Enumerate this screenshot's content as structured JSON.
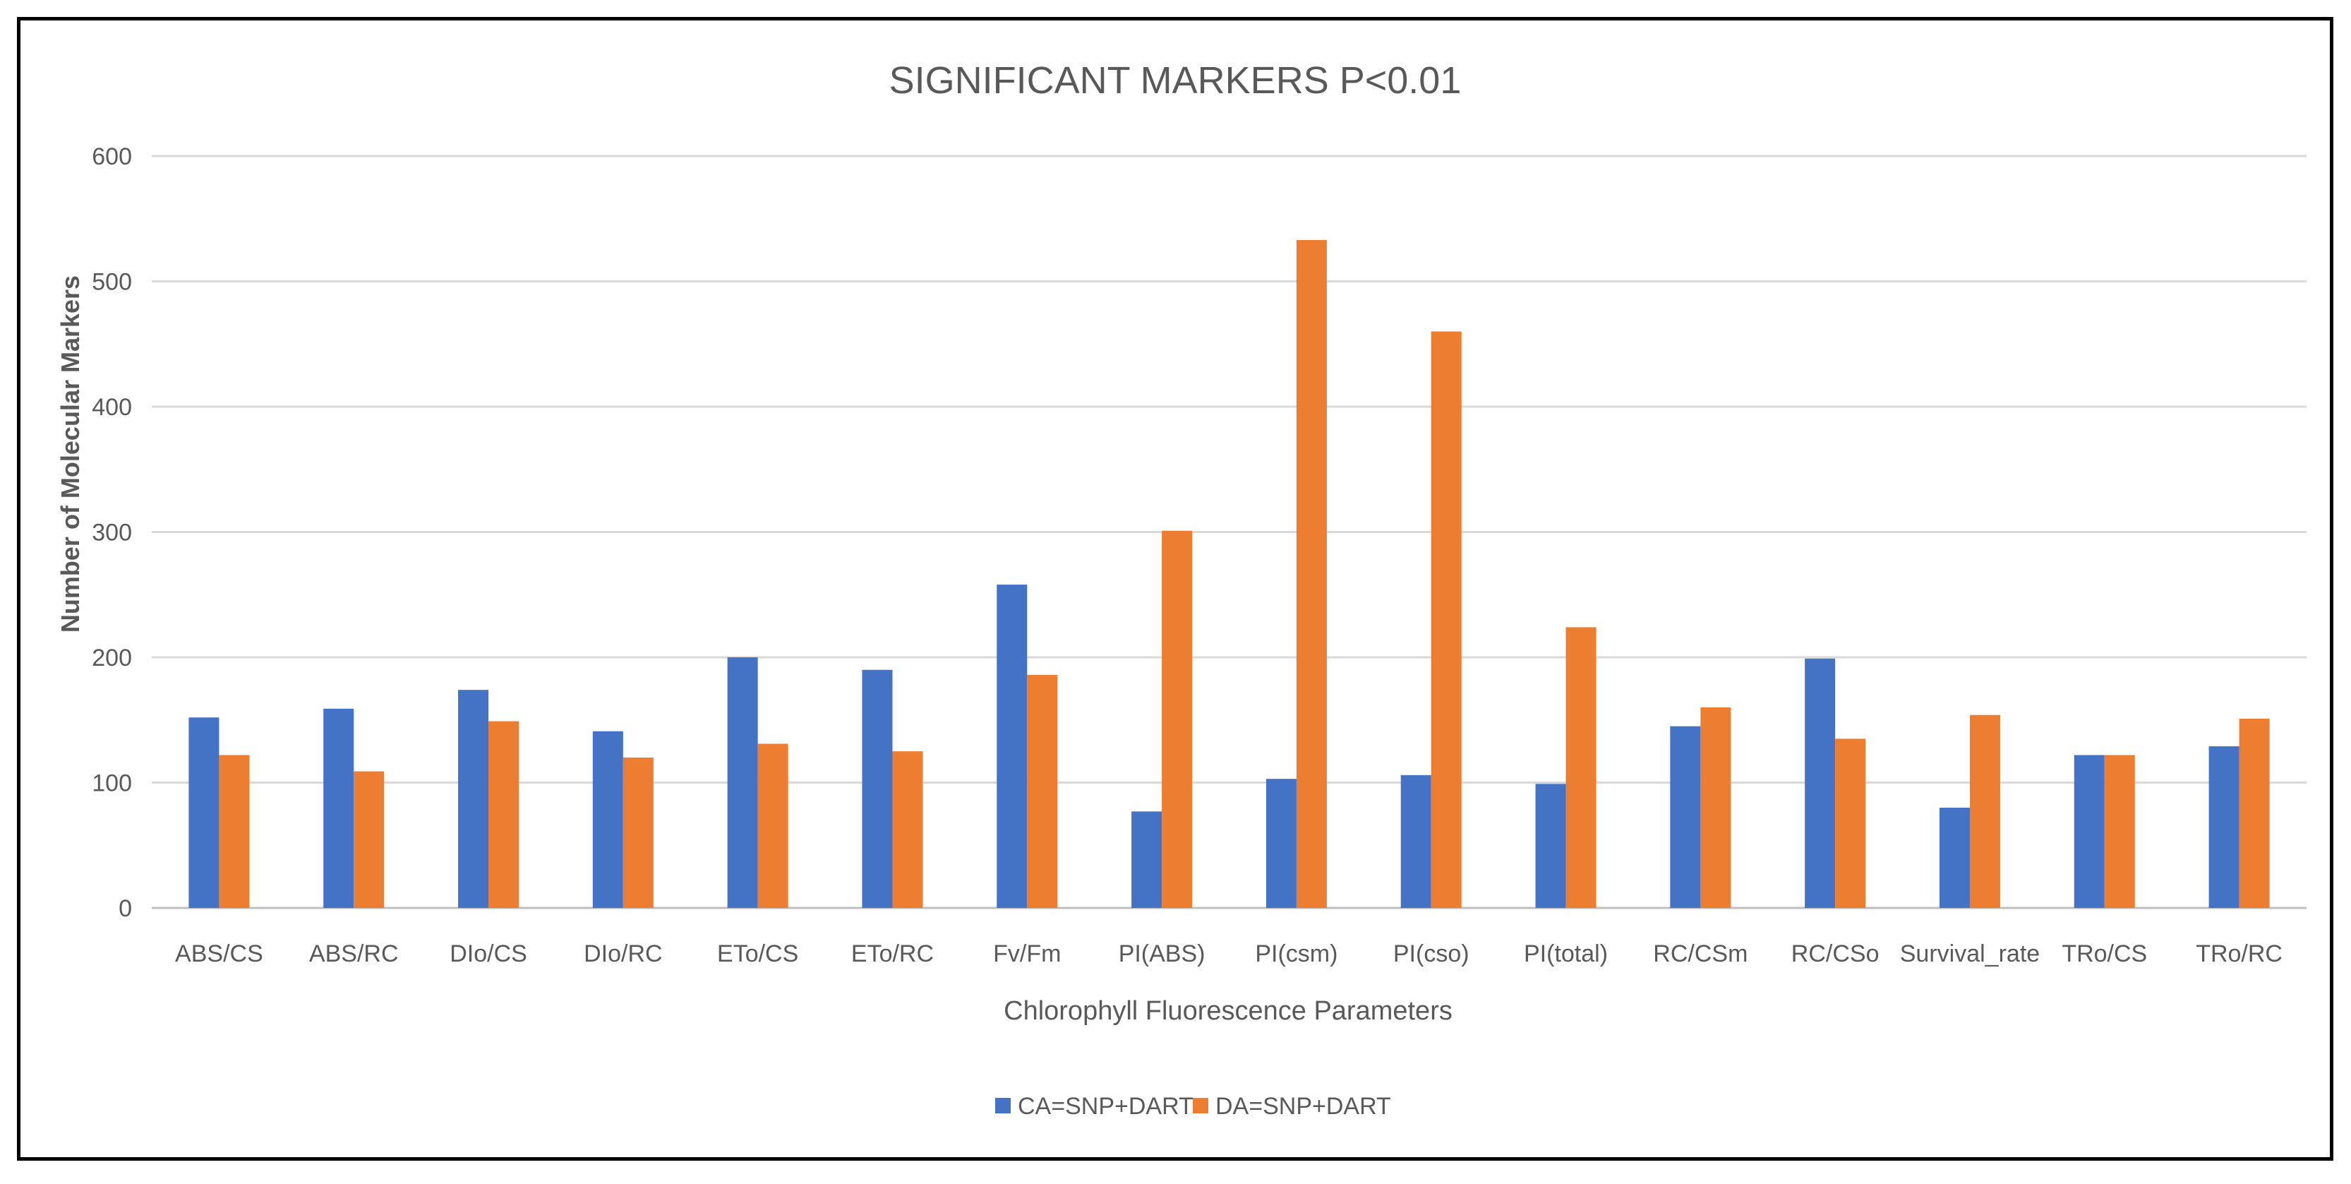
{
  "chart_data": {
    "type": "bar",
    "title": "SIGNIFICANT MARKERS P<0.01",
    "xlabel": "Chlorophyll Fluorescence Parameters",
    "ylabel": "Number of Molecular Markers",
    "ylim": [
      0,
      600
    ],
    "yticks": [
      0,
      100,
      200,
      300,
      400,
      500,
      600
    ],
    "grid": true,
    "legend_position": "bottom",
    "categories": [
      "ABS/CS",
      "ABS/RC",
      "DIo/CS",
      "DIo/RC",
      "ETo/CS",
      "ETo/RC",
      "Fv/Fm",
      "PI(ABS)",
      "PI(csm)",
      "PI(cso)",
      "PI(total)",
      "RC/CSm",
      "RC/CSo",
      "Survival_rate",
      "TRo/CS",
      "TRo/RC"
    ],
    "series": [
      {
        "name": "CA=SNP+DART",
        "color": "#4472C4",
        "values": [
          152,
          159,
          174,
          141,
          200,
          190,
          258,
          77,
          103,
          106,
          99,
          145,
          199,
          80,
          122,
          129
        ]
      },
      {
        "name": "DA=SNP+DART",
        "color": "#ED7D31",
        "values": [
          122,
          109,
          149,
          120,
          131,
          125,
          186,
          301,
          533,
          460,
          224,
          160,
          135,
          154,
          122,
          151
        ]
      }
    ]
  }
}
